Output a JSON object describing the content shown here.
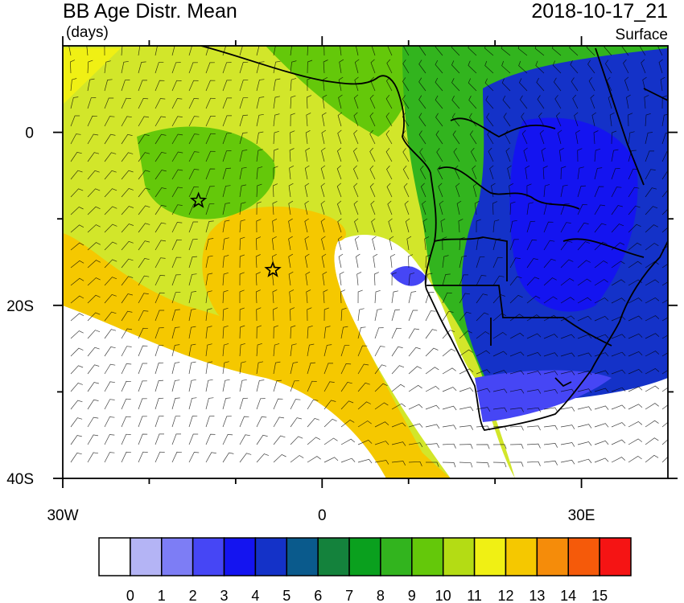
{
  "header": {
    "title": "BB Age Distr. Mean",
    "units": "(days)",
    "datetime": "2018-10-17_21",
    "level": "Surface"
  },
  "map": {
    "lon_min": -30,
    "lon_max": 40,
    "lat_min": -40,
    "lat_max": 10,
    "x_ticks": [
      {
        "value": -30,
        "label": "30W"
      },
      {
        "value": 0,
        "label": "0"
      },
      {
        "value": 30,
        "label": "30E"
      }
    ],
    "y_ticks": [
      {
        "value": 0,
        "label": "0"
      },
      {
        "value": -20,
        "label": "20S"
      },
      {
        "value": -40,
        "label": "40S"
      }
    ],
    "markers": [
      {
        "name": "star-marker-ascension",
        "lon": -14.3,
        "lat": -7.9
      },
      {
        "name": "star-marker-st-helena",
        "lon": -5.7,
        "lat": -15.9
      }
    ]
  },
  "colorbar": {
    "labels": [
      "0",
      "1",
      "2",
      "3",
      "4",
      "5",
      "6",
      "7",
      "8",
      "9",
      "10",
      "11",
      "12",
      "13",
      "14",
      "15"
    ],
    "colors": [
      "#ffffff",
      "#b4b4f5",
      "#7d7df5",
      "#4646f5",
      "#1414f0",
      "#1432c8",
      "#0a5a8c",
      "#14823c",
      "#0aa01e",
      "#32b41e",
      "#64c80a",
      "#b4dc14",
      "#f0f014",
      "#f5c800",
      "#f58c0a",
      "#f55a0a",
      "#f51414"
    ]
  }
}
